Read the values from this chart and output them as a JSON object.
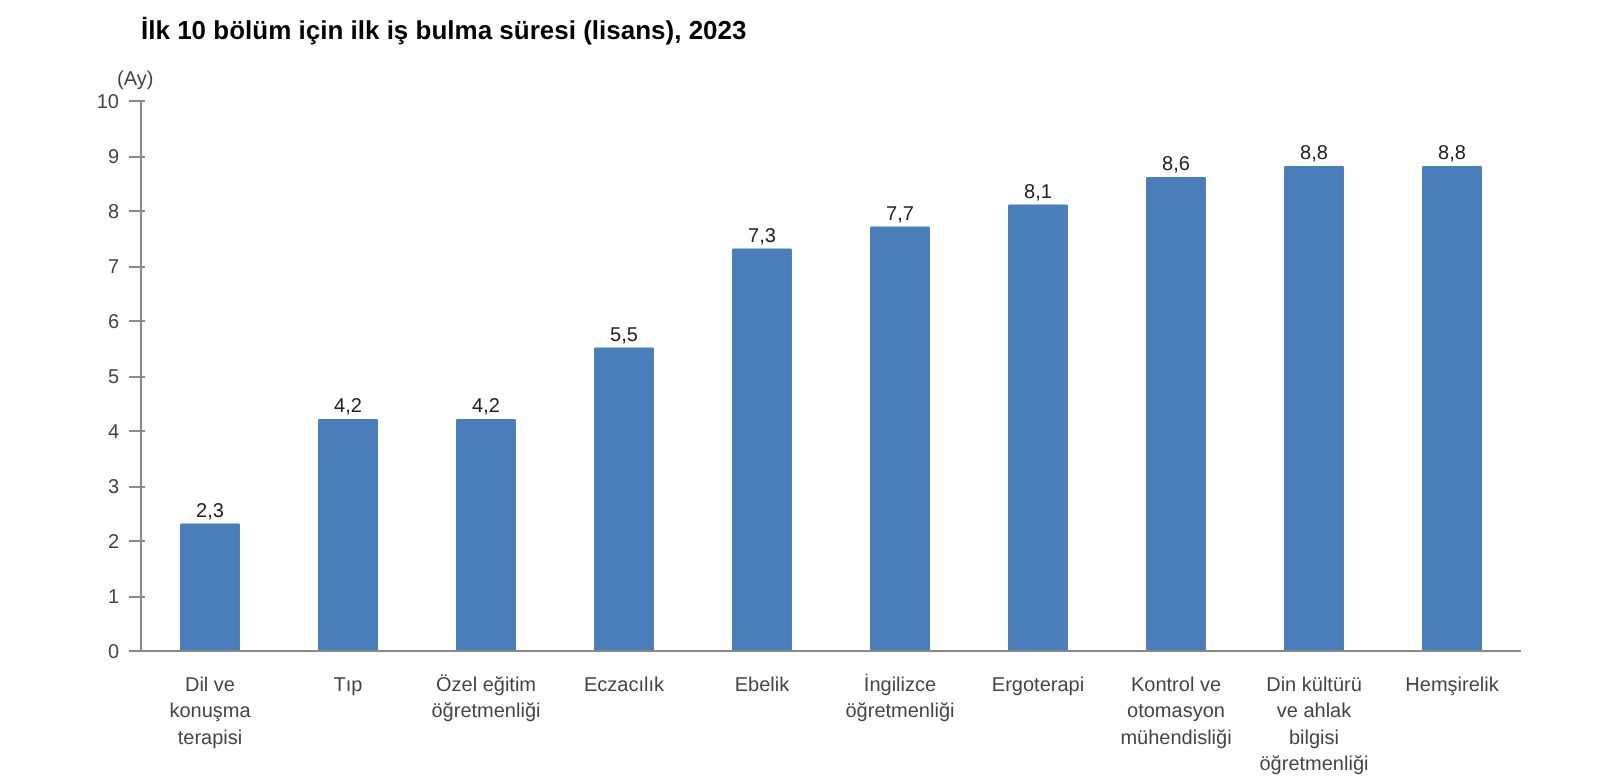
{
  "chart_data": {
    "type": "bar",
    "title": "İlk 10 bölüm için ilk iş bulma süresi (lisans), 2023",
    "ylabel": "(Ay)",
    "categories": [
      "Dil ve\nkonuşma\nterapisi",
      "Tıp",
      "Özel eğitim\nöğretmenliği",
      "Eczacılık",
      "Ebelik",
      "İngilizce\nöğretmenliği",
      "Ergoterapi",
      "Kontrol ve\notomasyon\nmühendisliği",
      "Din kültürü\nve ahlak\nbilgisi\nöğretmenliği",
      "Hemşirelik"
    ],
    "values": [
      2.3,
      4.2,
      4.2,
      5.5,
      7.3,
      7.7,
      8.1,
      8.6,
      8.8,
      8.8
    ],
    "value_labels": [
      "2,3",
      "4,2",
      "4,2",
      "5,5",
      "7,3",
      "7,7",
      "8,1",
      "8,6",
      "8,8",
      "8,8"
    ],
    "color": "#4a7ebb",
    "ylim": [
      0,
      10
    ],
    "yticks": [
      0,
      1,
      2,
      3,
      4,
      5,
      6,
      7,
      8,
      9,
      10
    ],
    "grid": false
  }
}
